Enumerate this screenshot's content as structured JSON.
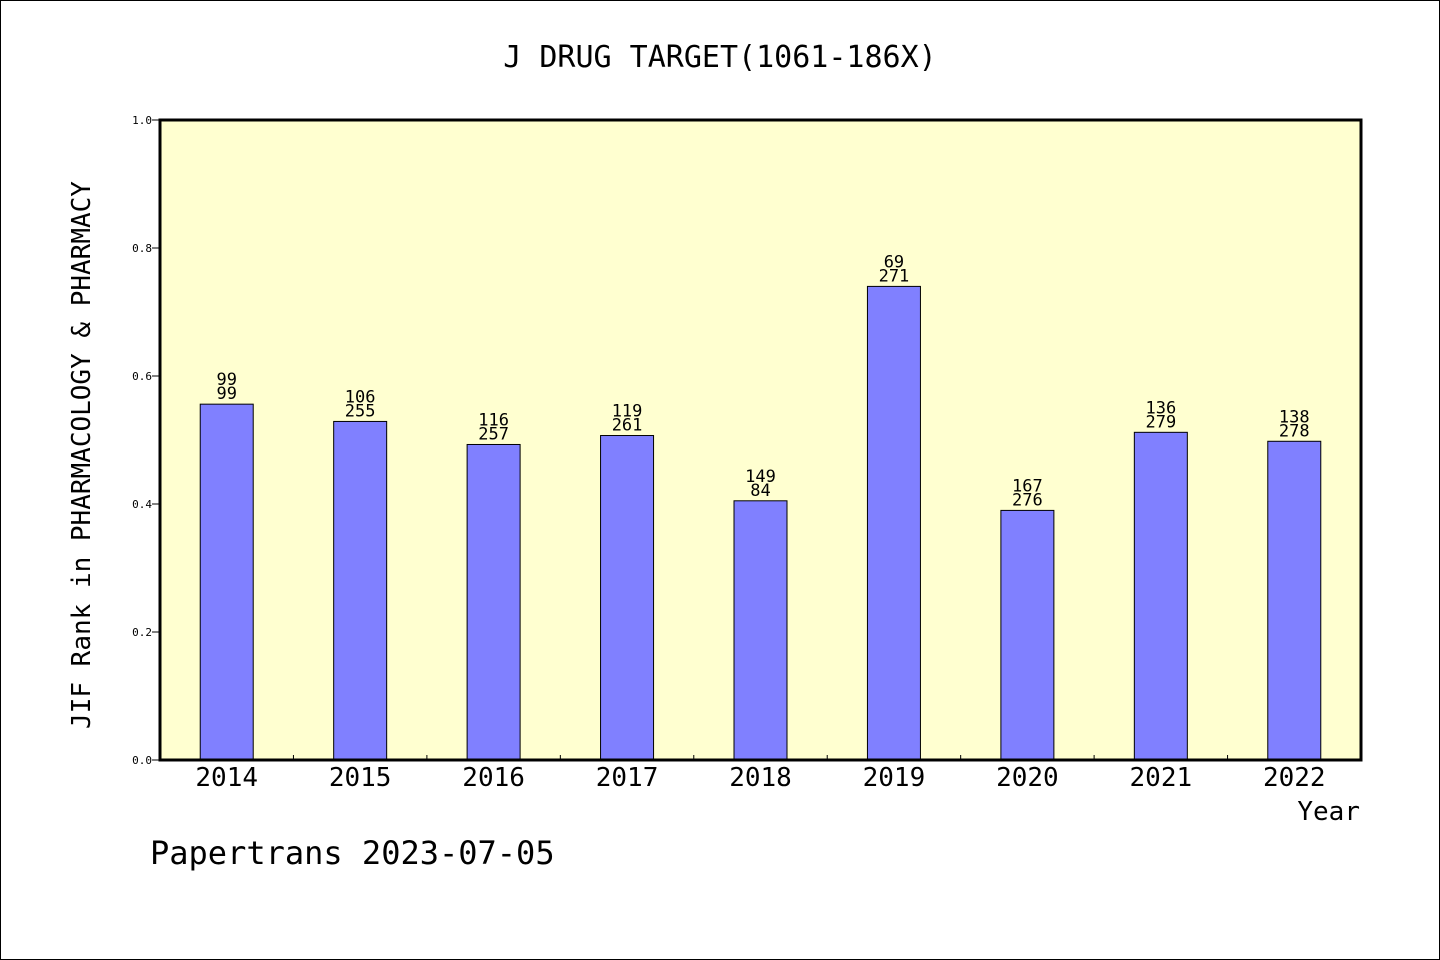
{
  "chart_data": {
    "type": "bar",
    "title": "J DRUG TARGET(1061-186X)",
    "xlabel": "Year",
    "ylabel": "JIF Rank in PHARMACOLOGY & PHARMACY",
    "ylim": [
      0,
      1.0
    ],
    "yticks": [
      "0.0",
      "0.2",
      "0.4",
      "0.6",
      "0.8",
      "1.0"
    ],
    "grid": false,
    "categories": [
      "2014",
      "2015",
      "2016",
      "2017",
      "2018",
      "2019",
      "2020",
      "2021",
      "2022"
    ],
    "values": [
      0.556,
      0.529,
      0.493,
      0.507,
      0.405,
      0.74,
      0.39,
      0.512,
      0.498
    ],
    "labels_top": [
      "99",
      "106",
      "116",
      "119",
      "149",
      "69",
      "167",
      "136",
      "138"
    ],
    "labels_bottom": [
      "99",
      "255",
      "257",
      "261",
      "84",
      "271",
      "276",
      "279",
      "278"
    ],
    "colors": {
      "bar": "#8080ff",
      "plot_bg": "#ffffd0"
    }
  },
  "footer": "Papertrans 2023-07-05"
}
